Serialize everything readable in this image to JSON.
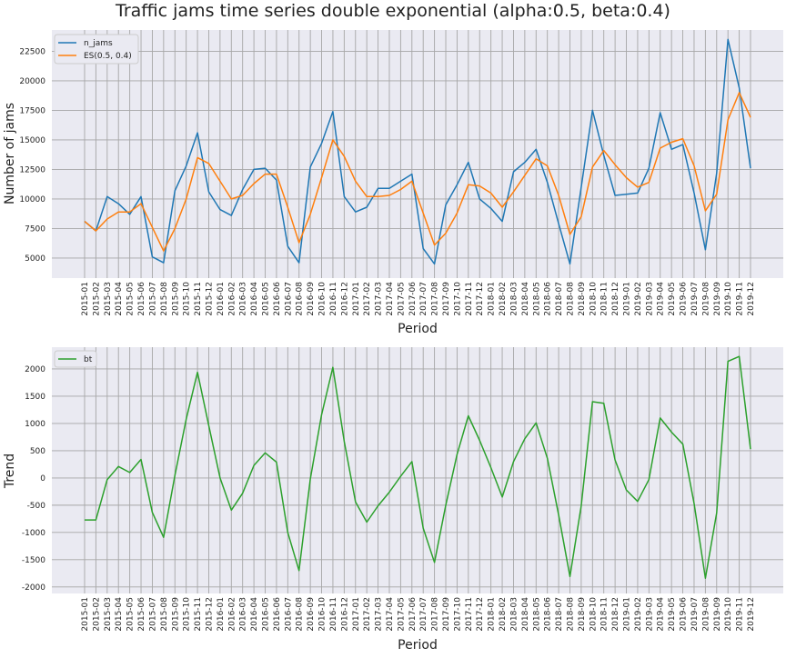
{
  "figure": {
    "title": "Traffic jams time series double exponential (alpha:0.5, beta:0.4)"
  },
  "chart_data": [
    {
      "type": "line",
      "title": "",
      "xlabel": "Period",
      "ylabel": "Number of jams",
      "ylim": [
        3300,
        24300
      ],
      "yticks": [
        5000,
        7500,
        10000,
        12500,
        15000,
        17500,
        20000,
        22500
      ],
      "grid": true,
      "legend_position": "top-left",
      "categories": [
        "2015-01",
        "2015-02",
        "2015-03",
        "2015-04",
        "2015-05",
        "2015-06",
        "2015-07",
        "2015-08",
        "2015-09",
        "2015-10",
        "2015-11",
        "2015-12",
        "2016-01",
        "2016-02",
        "2016-03",
        "2016-04",
        "2016-05",
        "2016-06",
        "2016-07",
        "2016-08",
        "2016-09",
        "2016-10",
        "2016-11",
        "2016-12",
        "2017-01",
        "2017-02",
        "2017-03",
        "2017-04",
        "2017-05",
        "2017-06",
        "2017-07",
        "2017-08",
        "2017-09",
        "2017-10",
        "2017-11",
        "2017-12",
        "2018-01",
        "2018-02",
        "2018-03",
        "2018-04",
        "2018-05",
        "2018-06",
        "2018-07",
        "2018-08",
        "2018-09",
        "2018-10",
        "2018-11",
        "2018-12",
        "2019-01",
        "2019-02",
        "2019-03",
        "2019-04",
        "2019-05",
        "2019-06",
        "2019-07",
        "2019-08",
        "2019-09",
        "2019-10",
        "2019-11",
        "2019-12"
      ],
      "series": [
        {
          "name": "n_jams",
          "color": "#1f77b4",
          "values": [
            8100,
            7300,
            10200,
            9600,
            8700,
            10200,
            5100,
            4600,
            10700,
            12800,
            15600,
            10600,
            9100,
            8600,
            10800,
            12500,
            12600,
            11600,
            6000,
            4600,
            12700,
            14700,
            17400,
            10200,
            8900,
            9300,
            10900,
            10900,
            11500,
            12100,
            5800,
            4500,
            9500,
            11200,
            13100,
            10000,
            9200,
            8100,
            12300,
            13100,
            14200,
            11400,
            7900,
            4500,
            11000,
            17500,
            13700,
            10300,
            10400,
            10500,
            12600,
            17300,
            14200,
            14600,
            10500,
            5700,
            12200,
            23500,
            19400,
            12600
          ]
        },
        {
          "name": "ES(0.5, 0.4)",
          "color": "#ff7f0e",
          "values": [
            8100,
            7300,
            8300,
            8900,
            8900,
            9600,
            7600,
            5600,
            7500,
            10000,
            13500,
            13000,
            11500,
            10000,
            10300,
            11300,
            12100,
            12100,
            9300,
            6300,
            8700,
            11800,
            15000,
            13600,
            11500,
            10200,
            10200,
            10300,
            10800,
            11500,
            8800,
            6100,
            7100,
            8800,
            11200,
            11100,
            10500,
            9300,
            10600,
            12000,
            13400,
            12800,
            10300,
            7000,
            8500,
            12700,
            14100,
            12900,
            11800,
            11000,
            11400,
            14300,
            14800,
            15100,
            12800,
            9000,
            10400,
            16700,
            19000,
            16900
          ]
        }
      ]
    },
    {
      "type": "line",
      "title": "",
      "xlabel": "Period",
      "ylabel": "Trend",
      "ylim": [
        -2120,
        2400
      ],
      "yticks": [
        -2000,
        -1500,
        -1000,
        -500,
        0,
        500,
        1000,
        1500,
        2000
      ],
      "grid": true,
      "legend_position": "top-left",
      "categories": [
        "2015-01",
        "2015-02",
        "2015-03",
        "2015-04",
        "2015-05",
        "2015-06",
        "2015-07",
        "2015-08",
        "2015-09",
        "2015-10",
        "2015-11",
        "2015-12",
        "2016-01",
        "2016-02",
        "2016-03",
        "2016-04",
        "2016-05",
        "2016-06",
        "2016-07",
        "2016-08",
        "2016-09",
        "2016-10",
        "2016-11",
        "2016-12",
        "2017-01",
        "2017-02",
        "2017-03",
        "2017-04",
        "2017-05",
        "2017-06",
        "2017-07",
        "2017-08",
        "2017-09",
        "2017-10",
        "2017-11",
        "2017-12",
        "2018-01",
        "2018-02",
        "2018-03",
        "2018-04",
        "2018-05",
        "2018-06",
        "2018-07",
        "2018-08",
        "2018-09",
        "2018-10",
        "2018-11",
        "2018-12",
        "2019-01",
        "2019-02",
        "2019-03",
        "2019-04",
        "2019-05",
        "2019-06",
        "2019-07",
        "2019-08",
        "2019-09",
        "2019-10",
        "2019-11",
        "2019-12"
      ],
      "series": [
        {
          "name": "bt",
          "color": "#2ca02c",
          "values": [
            -770,
            -770,
            -30,
            210,
            100,
            340,
            -630,
            -1090,
            50,
            1080,
            1940,
            960,
            0,
            -590,
            -280,
            230,
            460,
            290,
            -1000,
            -1700,
            -20,
            1160,
            2030,
            670,
            -440,
            -810,
            -510,
            -260,
            30,
            300,
            -920,
            -1550,
            -500,
            430,
            1140,
            690,
            190,
            -350,
            300,
            720,
            1010,
            360,
            -680,
            -1810,
            -510,
            1400,
            1370,
            330,
            -220,
            -430,
            -30,
            1100,
            840,
            620,
            -470,
            -1840,
            -640,
            2140,
            2230,
            530
          ]
        }
      ]
    }
  ]
}
